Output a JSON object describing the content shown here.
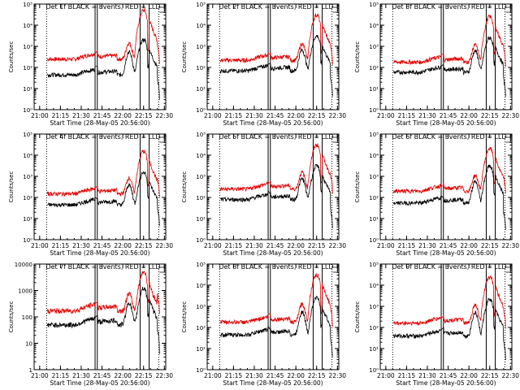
{
  "chart_data": [
    {
      "type": "line",
      "title": "Det 1f BLACK = Events, RED = LLD",
      "xlabel": "Start Time (28-May-05 20:56:00)",
      "ylabel": "Counts/sec",
      "x_ticks": [
        "21:00",
        "21:15",
        "21:30",
        "21:45",
        "22:00",
        "22:15",
        "22:30"
      ],
      "xlim_minutes": [
        0,
        95
      ],
      "y_scale": "log",
      "y_ticks": [
        "10⁰",
        "10¹",
        "10²",
        "10³",
        "10⁴",
        "10⁵"
      ],
      "ylim": [
        1,
        100000
      ],
      "black_base": 45,
      "red_base": 250,
      "black_peak": 2000,
      "red_peak": 50000,
      "black_bump": 500,
      "red_bump": 1200,
      "tail_drop": 12
    },
    {
      "type": "line",
      "title": "Det 2f BLACK = Events, RED = LLD",
      "xlabel": "Start Time (28-May-05 20:56:00)",
      "ylabel": "Counts/sec",
      "x_ticks": [
        "21:00",
        "21:15",
        "21:30",
        "21:45",
        "22:00",
        "22:15",
        "22:30"
      ],
      "xlim_minutes": [
        0,
        95
      ],
      "y_scale": "log",
      "y_ticks": [
        "10⁰",
        "10¹",
        "10²",
        "10³",
        "10⁴",
        "10⁵"
      ],
      "ylim": [
        1,
        100000
      ],
      "black_base": 70,
      "red_base": 220,
      "black_peak": 3000,
      "red_peak": 30000,
      "black_bump": 600,
      "red_bump": 1100,
      "tail_drop": 15
    },
    {
      "type": "line",
      "title": "Det 3f BLACK = Events, RED = LLD",
      "xlabel": "Start Time (28-May-05 20:56:00)",
      "ylabel": "Counts/sec",
      "x_ticks": [
        "21:00",
        "21:15",
        "21:30",
        "21:45",
        "22:00",
        "22:15",
        "22:30"
      ],
      "xlim_minutes": [
        0,
        95
      ],
      "y_scale": "log",
      "y_ticks": [
        "10⁰",
        "10¹",
        "10²",
        "10³",
        "10⁴",
        "10⁵"
      ],
      "ylim": [
        1,
        100000
      ],
      "black_base": 60,
      "red_base": 180,
      "black_peak": 2500,
      "red_peak": 25000,
      "black_bump": 550,
      "red_bump": 1000,
      "tail_drop": 15
    },
    {
      "type": "line",
      "title": "Det 4f BLACK = Events, RED = LLD",
      "xlabel": "Start Time (28-May-05 20:56:00)",
      "ylabel": "Counts/sec",
      "x_ticks": [
        "21:00",
        "21:15",
        "21:30",
        "21:45",
        "22:00",
        "22:15",
        "22:30"
      ],
      "xlim_minutes": [
        0,
        95
      ],
      "y_scale": "log",
      "y_ticks": [
        "10⁰",
        "10¹",
        "10²",
        "10³",
        "10⁴",
        "10⁵"
      ],
      "ylim": [
        1,
        100000
      ],
      "black_base": 45,
      "red_base": 150,
      "black_peak": 1500,
      "red_peak": 15000,
      "black_bump": 350,
      "red_bump": 700,
      "tail_drop": 10
    },
    {
      "type": "line",
      "title": "Det 5f BLACK = Events, RED = LLD",
      "xlabel": "Start Time (28-May-05 20:56:00)",
      "ylabel": "Counts/sec",
      "x_ticks": [
        "21:00",
        "21:15",
        "21:30",
        "21:45",
        "22:00",
        "22:15",
        "22:30"
      ],
      "xlim_minutes": [
        0,
        95
      ],
      "y_scale": "log",
      "y_ticks": [
        "10⁰",
        "10¹",
        "10²",
        "10³",
        "10⁴",
        "10⁵"
      ],
      "ylim": [
        1,
        100000
      ],
      "black_base": 80,
      "red_base": 250,
      "black_peak": 3000,
      "red_peak": 30000,
      "black_bump": 700,
      "red_bump": 1300,
      "tail_drop": 20
    },
    {
      "type": "line",
      "title": "Det 6f BLACK = Events, RED = LLD",
      "xlabel": "Start Time (28-May-05 20:56:00)",
      "ylabel": "Counts/sec",
      "x_ticks": [
        "21:00",
        "21:15",
        "21:30",
        "21:45",
        "22:00",
        "22:15",
        "22:30"
      ],
      "xlim_minutes": [
        0,
        95
      ],
      "y_scale": "log",
      "y_ticks": [
        "10⁰",
        "10¹",
        "10²",
        "10³",
        "10⁴",
        "10⁵"
      ],
      "ylim": [
        1,
        100000
      ],
      "black_base": 55,
      "red_base": 200,
      "black_peak": 3000,
      "red_peak": 20000,
      "black_bump": 500,
      "red_bump": 900,
      "tail_drop": 20
    },
    {
      "type": "line",
      "title": "Det 7f BLACK = Events, RED = LLD",
      "xlabel": "Start Time (28-May-05 20:56:00)",
      "ylabel": "Counts/sec",
      "x_ticks": [
        "21:00",
        "21:15",
        "21:30",
        "21:45",
        "22:00",
        "22:15",
        "22:30"
      ],
      "xlim_minutes": [
        0,
        95
      ],
      "y_scale": "log",
      "y_ticks": [
        "1",
        "10",
        "100",
        "1000",
        "10000"
      ],
      "ylim": [
        1,
        10000
      ],
      "black_base": 50,
      "red_base": 170,
      "black_peak": 1200,
      "red_peak": 5000,
      "black_bump": 300,
      "red_bump": 600,
      "tail_drop": 10
    },
    {
      "type": "line",
      "title": "Det 8f BLACK = Events, RED = LLD",
      "xlabel": "Start Time (28-May-05 20:56:00)",
      "ylabel": "Counts/sec",
      "x_ticks": [
        "21:00",
        "21:15",
        "21:30",
        "21:45",
        "22:00",
        "22:15",
        "22:30"
      ],
      "xlim_minutes": [
        0,
        95
      ],
      "y_scale": "log",
      "y_ticks": [
        "10⁰",
        "10¹",
        "10²",
        "10³",
        "10⁴",
        "10⁵"
      ],
      "ylim": [
        1,
        100000
      ],
      "black_base": 45,
      "red_base": 180,
      "black_peak": 2500,
      "red_peak": 30000,
      "black_bump": 500,
      "red_bump": 1100,
      "tail_drop": 12
    },
    {
      "type": "line",
      "title": "Det 9f BLACK = Events, RED = LLD",
      "xlabel": "Start Time (28-May-05 20:56:00)",
      "ylabel": "Counts/sec",
      "x_ticks": [
        "21:00",
        "21:15",
        "21:30",
        "21:45",
        "22:00",
        "22:15",
        "22:30"
      ],
      "xlim_minutes": [
        0,
        95
      ],
      "y_scale": "log",
      "y_ticks": [
        "10⁰",
        "10¹",
        "10²",
        "10³",
        "10⁴",
        "10⁵"
      ],
      "ylim": [
        1,
        100000
      ],
      "black_base": 40,
      "red_base": 160,
      "black_peak": 2000,
      "red_peak": 25000,
      "black_bump": 450,
      "red_bump": 1000,
      "tail_drop": 12
    }
  ],
  "markers": {
    "dotted_minutes": [
      9,
      90
    ],
    "solid_minutes": [
      44,
      45.6,
      76.5,
      83
    ],
    "series_colors": {
      "events": "#000000",
      "lld": "#e00000"
    }
  }
}
